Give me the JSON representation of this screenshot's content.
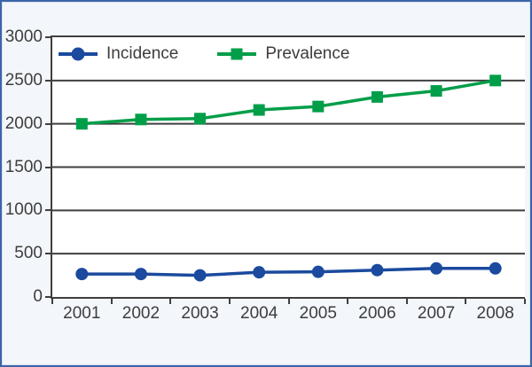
{
  "chart_data": {
    "type": "line",
    "title": "",
    "xlabel": "",
    "ylabel": "",
    "categories": [
      "2001",
      "2002",
      "2003",
      "2004",
      "2005",
      "2006",
      "2007",
      "2008"
    ],
    "series": [
      {
        "name": "Incidence",
        "marker": "circle",
        "color": "#1b4a9e",
        "values": [
          265,
          265,
          250,
          285,
          290,
          310,
          330,
          330
        ]
      },
      {
        "name": "Prevalence",
        "marker": "square",
        "color": "#009e49",
        "values": [
          2000,
          2050,
          2060,
          2160,
          2200,
          2310,
          2380,
          2500
        ]
      }
    ],
    "ylim": [
      0,
      3000
    ],
    "y_ticks": [
      0,
      500,
      1000,
      1500,
      2000,
      2500,
      3000
    ],
    "grid": "horizontal",
    "legend_position": "top-left-inside",
    "gridline_color": "#3f3f3f",
    "axis_text_color": "#3d3d3d"
  },
  "frame": {
    "border_color": "#3c64aa",
    "background_color": "#f3f6fa",
    "plot_background": "#ffffff"
  }
}
